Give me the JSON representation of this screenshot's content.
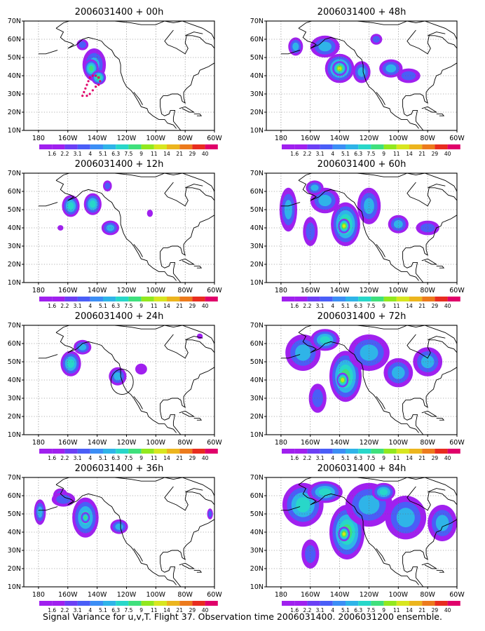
{
  "caption": "Signal Variance for u,v,T. Flight 37. Observation time 2006031400. 2006031200 ensemble.",
  "panels": [
    {
      "title": "2006031400 + 00h",
      "blobs": [
        [
          -142,
          46,
          8,
          9,
          3
        ],
        [
          -144,
          44,
          5,
          5,
          5
        ],
        [
          -139,
          39,
          5,
          4,
          5
        ],
        [
          -150,
          57,
          4,
          3,
          2
        ]
      ],
      "track": true
    },
    {
      "title": "2006031400 + 48h",
      "blobs": [
        [
          -140,
          44,
          10,
          8,
          5
        ],
        [
          -140,
          44,
          5,
          4,
          7
        ],
        [
          -125,
          42,
          6,
          6,
          3
        ],
        [
          -105,
          44,
          8,
          5,
          3
        ],
        [
          -170,
          56,
          5,
          5,
          3
        ],
        [
          -150,
          56,
          10,
          6,
          3
        ],
        [
          -93,
          40,
          8,
          4,
          2
        ],
        [
          -115,
          60,
          4,
          3,
          2
        ]
      ]
    },
    {
      "title": "2006031400 + 12h",
      "blobs": [
        [
          -158,
          52,
          6,
          6,
          4
        ],
        [
          -143,
          53,
          6,
          6,
          4
        ],
        [
          -131,
          40,
          6,
          4,
          3
        ],
        [
          -165,
          40,
          2,
          1.5,
          1
        ],
        [
          -133,
          63,
          3,
          3,
          2
        ],
        [
          -104,
          48,
          2,
          2,
          1
        ]
      ]
    },
    {
      "title": "2006031400 + 60h",
      "blobs": [
        [
          -136,
          42,
          10,
          12,
          5
        ],
        [
          -137,
          41,
          4,
          4,
          7
        ],
        [
          -175,
          50,
          6,
          12,
          3
        ],
        [
          -150,
          55,
          10,
          7,
          3
        ],
        [
          -120,
          52,
          8,
          10,
          3
        ],
        [
          -100,
          42,
          7,
          5,
          3
        ],
        [
          -160,
          38,
          5,
          8,
          2
        ],
        [
          -80,
          40,
          8,
          4,
          2
        ],
        [
          -157,
          62,
          6,
          4,
          3
        ]
      ]
    },
    {
      "title": "2006031400 + 24h",
      "blobs": [
        [
          -158,
          49,
          7,
          7,
          4
        ],
        [
          -150,
          58,
          6,
          4,
          3
        ],
        [
          -126,
          42,
          6,
          5,
          3
        ],
        [
          -110,
          46,
          4,
          3,
          1
        ],
        [
          -70,
          64,
          2,
          1.5,
          1
        ]
      ]
    },
    {
      "title": "2006031400 + 72h",
      "blobs": [
        [
          -136,
          42,
          11,
          14,
          5
        ],
        [
          -138,
          40,
          4,
          4,
          7
        ],
        [
          -165,
          55,
          12,
          10,
          3
        ],
        [
          -120,
          55,
          14,
          10,
          3
        ],
        [
          -100,
          44,
          10,
          8,
          3
        ],
        [
          -80,
          50,
          10,
          8,
          3
        ],
        [
          -155,
          30,
          6,
          8,
          2
        ],
        [
          -150,
          62,
          10,
          6,
          4
        ]
      ]
    },
    {
      "title": "2006031400 + 36h",
      "blobs": [
        [
          -148,
          48,
          9,
          11,
          4
        ],
        [
          -148,
          48,
          3,
          3,
          5
        ],
        [
          -179,
          51,
          4,
          7,
          3
        ],
        [
          -165,
          60,
          5,
          4,
          2
        ],
        [
          -125,
          43,
          6,
          4,
          3
        ],
        [
          -163,
          58,
          8,
          4,
          2
        ],
        [
          -63,
          50,
          2,
          3,
          2
        ]
      ]
    },
    {
      "title": "2006031400 + 84h",
      "blobs": [
        [
          -135,
          40,
          12,
          15,
          5
        ],
        [
          -137,
          39,
          4,
          4,
          7
        ],
        [
          -165,
          55,
          14,
          12,
          4
        ],
        [
          -120,
          55,
          16,
          12,
          3
        ],
        [
          -95,
          48,
          14,
          12,
          3
        ],
        [
          -70,
          45,
          10,
          10,
          3
        ],
        [
          -160,
          28,
          6,
          8,
          2
        ],
        [
          -150,
          62,
          12,
          6,
          4
        ],
        [
          -110,
          62,
          8,
          5,
          4
        ]
      ]
    }
  ],
  "map": {
    "lon_range": [
      -190,
      -60
    ],
    "lat_range": [
      10,
      70
    ],
    "lon_labels": [
      "180",
      "160W",
      "140W",
      "120W",
      "100W",
      "80W",
      "60W"
    ],
    "lat_labels": [
      "70N",
      "60N",
      "50N",
      "40N",
      "30N",
      "20N",
      "10N"
    ]
  },
  "colorbar": {
    "levels": [
      "1.6",
      "2.2",
      "3.1",
      "4",
      "5.1",
      "6.3",
      "7.5",
      "9",
      "11",
      "14",
      "21",
      "29",
      "40"
    ],
    "colors": [
      "#a020ef",
      "#6c3ff5",
      "#4a5ef7",
      "#3c8ef5",
      "#2fb4e8",
      "#28d7c9",
      "#3fe07c",
      "#92e81e",
      "#d8e620",
      "#ecb51e",
      "#ec7a1c",
      "#e82c1f",
      "#e0006a"
    ]
  }
}
